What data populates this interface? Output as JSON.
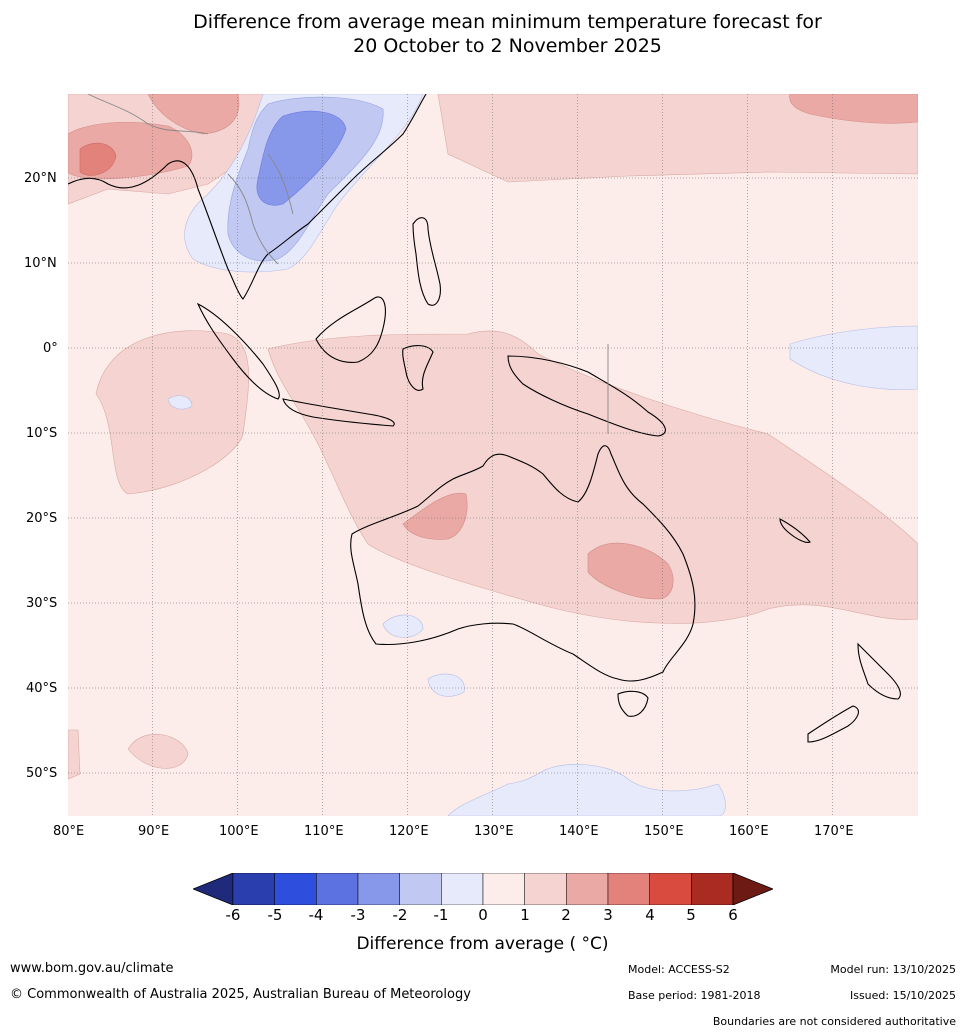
{
  "title": {
    "line1": "Difference from average mean minimum temperature forecast for",
    "line2": "20 October to 2 November 2025"
  },
  "axes": {
    "lat_labels": [
      "20°N",
      "10°N",
      "0°",
      "10°S",
      "20°S",
      "30°S",
      "40°S",
      "50°S"
    ],
    "lon_labels": [
      "80°E",
      "90°E",
      "100°E",
      "110°E",
      "120°E",
      "130°E",
      "140°E",
      "150°E",
      "160°E",
      "170°E"
    ]
  },
  "colorbar": {
    "ticks": [
      "-6",
      "-5",
      "-4",
      "-3",
      "-2",
      "-1",
      "0",
      "1",
      "2",
      "3",
      "4",
      "5",
      "6"
    ],
    "colors": [
      "#1f2a7a",
      "#2a3eae",
      "#2e4fdd",
      "#5b72e0",
      "#8797ea",
      "#c1c8f2",
      "#e6eafb",
      "#fcecea",
      "#f4d3d0",
      "#eba9a5",
      "#e3817b",
      "#d94a3f",
      "#aa2b22",
      "#6e1a14"
    ],
    "label": "Difference from average ( °C)"
  },
  "footer": {
    "website": "www.bom.gov.au/climate",
    "copyright": "© Commonwealth of Australia 2025, Australian Bureau of Meteorology",
    "model": "Model: ACCESS-S2",
    "base_period": "Base period: 1981-2018",
    "model_run": "Model run: 13/10/2025",
    "issued": "Issued: 15/10/2025",
    "disclaimer": "Boundaries are not considered authoritative"
  }
}
